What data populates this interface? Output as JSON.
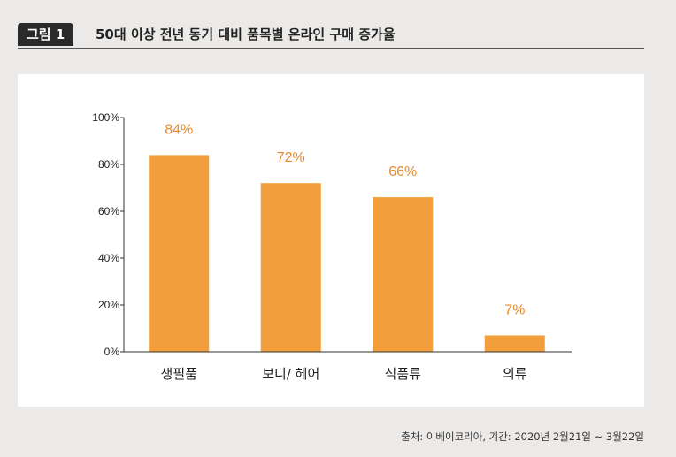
{
  "header": {
    "figure_label": "그림 1",
    "title": "50대 이상 전년 동기 대비 품목별 온라인 구매 증가율"
  },
  "source": "출처: 이베이코리아, 기간: 2020년 2월21일 ~ 3월22일",
  "chart_data": {
    "type": "bar",
    "title": "",
    "xlabel": "",
    "ylabel": "",
    "categories": [
      "생필품",
      "보디/ 헤어",
      "식품류",
      "의류"
    ],
    "values": [
      84,
      72,
      66,
      7
    ],
    "data_labels": [
      "84%",
      "72%",
      "66%",
      "7%"
    ],
    "ylim": [
      0,
      100
    ],
    "yticks": [
      0,
      20,
      40,
      60,
      80,
      100
    ],
    "ytick_labels": [
      "0%",
      "20%",
      "40%",
      "60%",
      "80%",
      "100%"
    ],
    "grid": false,
    "bar_color": "#f29e3c",
    "label_color": "#e8892a"
  }
}
